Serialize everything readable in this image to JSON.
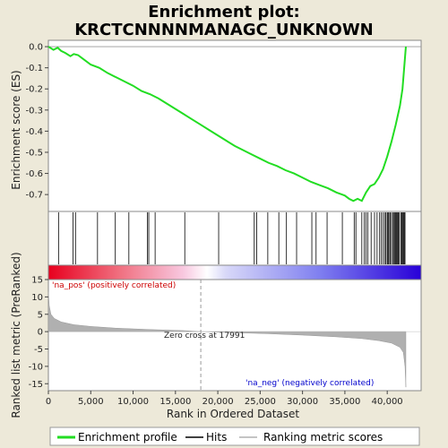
{
  "chart_data": {
    "type": "line",
    "title_line1": "Enrichment plot:",
    "title_line2": "KRCTCNNNNMANAGC_UNKNOWN",
    "xlabel": "Rank in Ordered Dataset",
    "ylabel_top": "Enrichment score (ES)",
    "ylabel_bottom": "Ranked list metric (PreRanked)",
    "xlim": [
      0,
      44000
    ],
    "x_ticks": [
      0,
      5000,
      10000,
      15000,
      20000,
      25000,
      30000,
      35000,
      40000
    ],
    "x_tick_labels": [
      "0",
      "5,000",
      "10,000",
      "15,000",
      "20,000",
      "25,000",
      "30,000",
      "35,000",
      "40,000"
    ],
    "es_ylim": [
      -0.78,
      0.03
    ],
    "es_ticks": [
      0.0,
      -0.1,
      -0.2,
      -0.3,
      -0.4,
      -0.5,
      -0.6,
      -0.7
    ],
    "es_tick_labels": [
      "0.0",
      "-0.1",
      "-0.2",
      "-0.3",
      "-0.4",
      "-0.5",
      "-0.6",
      "-0.7"
    ],
    "metric_ylim": [
      -17,
      15
    ],
    "metric_ticks": [
      15,
      10,
      5,
      0,
      -5,
      -10,
      -15
    ],
    "metric_tick_labels": [
      "15",
      "10",
      "5",
      "0",
      "-5",
      "-10",
      "-15"
    ],
    "es_curve": {
      "x": [
        0,
        600,
        1100,
        1500,
        2000,
        2600,
        3000,
        3500,
        4000,
        5000,
        6000,
        7000,
        8000,
        9000,
        10000,
        11000,
        12000,
        13000,
        14000,
        15000,
        16000,
        17000,
        18000,
        19000,
        20000,
        21000,
        22000,
        23000,
        24000,
        25000,
        26000,
        27000,
        28000,
        29000,
        30000,
        31000,
        32000,
        33000,
        34000,
        35000,
        35500,
        36000,
        36500,
        37000,
        37500,
        38000,
        38500,
        39000,
        39500,
        40000,
        40500,
        41000,
        41500,
        41800,
        42000,
        42200
      ],
      "y": [
        0.0,
        -0.015,
        -0.005,
        -0.02,
        -0.03,
        -0.045,
        -0.035,
        -0.04,
        -0.055,
        -0.085,
        -0.1,
        -0.125,
        -0.145,
        -0.165,
        -0.185,
        -0.21,
        -0.225,
        -0.245,
        -0.27,
        -0.295,
        -0.32,
        -0.345,
        -0.37,
        -0.395,
        -0.42,
        -0.445,
        -0.47,
        -0.49,
        -0.51,
        -0.53,
        -0.55,
        -0.565,
        -0.585,
        -0.6,
        -0.62,
        -0.64,
        -0.655,
        -0.67,
        -0.69,
        -0.705,
        -0.72,
        -0.73,
        -0.72,
        -0.73,
        -0.69,
        -0.66,
        -0.65,
        -0.62,
        -0.58,
        -0.52,
        -0.45,
        -0.37,
        -0.28,
        -0.2,
        -0.1,
        0.0
      ]
    },
    "hits": [
      1200,
      2900,
      3200,
      5800,
      7900,
      9500,
      11700,
      11850,
      12600,
      16100,
      20100,
      24300,
      24600,
      25900,
      27200,
      28100,
      29300,
      31100,
      31600,
      32900,
      34700,
      36100,
      36300,
      37000,
      37300,
      37500,
      37700,
      38100,
      38500,
      38800,
      39100,
      39300,
      39500,
      39700,
      39850,
      40000,
      40100,
      40200,
      40350,
      40500,
      40650,
      40800,
      40900,
      41000,
      41100,
      41200,
      41300,
      41400,
      41600,
      41700,
      41800,
      41900,
      42000,
      42100
    ],
    "metric_curve": {
      "x": [
        0,
        100,
        300,
        700,
        1500,
        3000,
        5000,
        8000,
        12000,
        16000,
        17991,
        22000,
        26000,
        30000,
        34000,
        37000,
        39000,
        40500,
        41500,
        41900,
        42100,
        42200
      ],
      "y": [
        11.5,
        7.5,
        5.0,
        3.8,
        2.8,
        2.0,
        1.5,
        1.0,
        0.6,
        0.3,
        0.0,
        -0.3,
        -0.6,
        -1.0,
        -1.5,
        -2.0,
        -2.6,
        -3.3,
        -4.5,
        -6.0,
        -10.0,
        -16.0
      ]
    },
    "zero_cross_x": 17991,
    "zero_cross_label": "Zero cross at 17991",
    "pos_label": "'na_pos' (positively correlated)",
    "neg_label": "'na_neg' (negatively correlated)",
    "colors": {
      "es_line": "#22dd22",
      "hit_line": "#000000",
      "metric_fill": "#b0b0b0",
      "pos_text": "#cc0000",
      "neg_text": "#0000cc",
      "heat_red": "#e8001e",
      "heat_blue": "#2800d8"
    },
    "legend": [
      {
        "label": "Enrichment profile",
        "kind": "es"
      },
      {
        "label": "Hits",
        "kind": "hit"
      },
      {
        "label": "Ranking metric scores",
        "kind": "metric"
      }
    ]
  }
}
